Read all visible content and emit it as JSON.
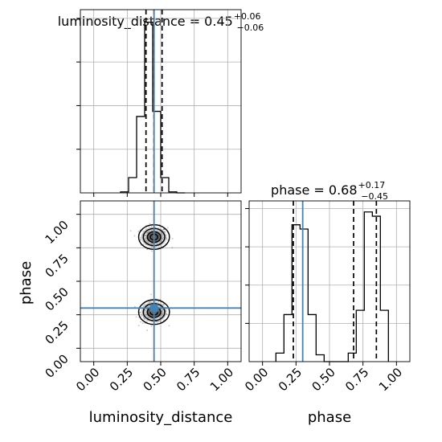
{
  "chart_data": {
    "type": "corner",
    "parameters": [
      "luminosity_distance",
      "phase"
    ],
    "truth": {
      "luminosity_distance": 0.45,
      "phase": 0.3
    },
    "colors": {
      "truth": "#4682b4",
      "hist": "#000000",
      "grid": "#b0b0b0",
      "scatter": "#555555"
    },
    "grid": true,
    "panels": [
      {
        "name": "luminosity_distance-marginal",
        "type": "step-histogram",
        "title": {
          "main": "luminosity_distance = 0.45",
          "sup": "+0.06",
          "sub": "−0.06"
        },
        "xlim": [
          -0.1,
          1.1
        ],
        "bin_edges": [
          0.2,
          0.26,
          0.32,
          0.38,
          0.44,
          0.5,
          0.56,
          0.62,
          0.68
        ],
        "counts": [
          2,
          30,
          150,
          335,
          160,
          30,
          2,
          0
        ],
        "quantiles": [
          0.39,
          0.45,
          0.51
        ]
      },
      {
        "name": "phase-marginal",
        "type": "step-histogram",
        "title": {
          "main": "phase = 0.68",
          "sup": "+0.17",
          "sub": "−0.45"
        },
        "xlim": [
          -0.1,
          1.1
        ],
        "bin_edges": [
          0.1,
          0.16,
          0.22,
          0.28,
          0.34,
          0.4,
          0.46,
          0.52,
          0.58,
          0.64,
          0.7,
          0.76,
          0.82,
          0.88,
          0.94
        ],
        "counts": [
          10,
          55,
          160,
          155,
          55,
          8,
          0,
          0,
          0,
          10,
          60,
          175,
          170,
          60
        ],
        "quantiles": [
          0.23,
          0.68,
          0.85
        ]
      },
      {
        "name": "joint-2d",
        "type": "contour-scatter",
        "xlim": [
          -0.1,
          1.1
        ],
        "ylim": [
          -0.1,
          1.1
        ],
        "modes": [
          [
            0.45,
            0.83
          ],
          [
            0.45,
            0.27
          ]
        ],
        "spread": [
          0.05,
          0.04
        ]
      }
    ],
    "x_ticks": [
      "0.00",
      "0.25",
      "0.50",
      "0.75",
      "1.00"
    ],
    "x_tick_values": [
      0.0,
      0.25,
      0.5,
      0.75,
      1.0
    ],
    "y_ticks": [
      "0.00",
      "0.25",
      "0.50",
      "0.75",
      "1.00"
    ],
    "y_tick_values": [
      0.0,
      0.25,
      0.5,
      0.75,
      1.0
    ],
    "xlabels": [
      "luminosity_distance",
      "phase"
    ],
    "ylabel": "phase"
  }
}
